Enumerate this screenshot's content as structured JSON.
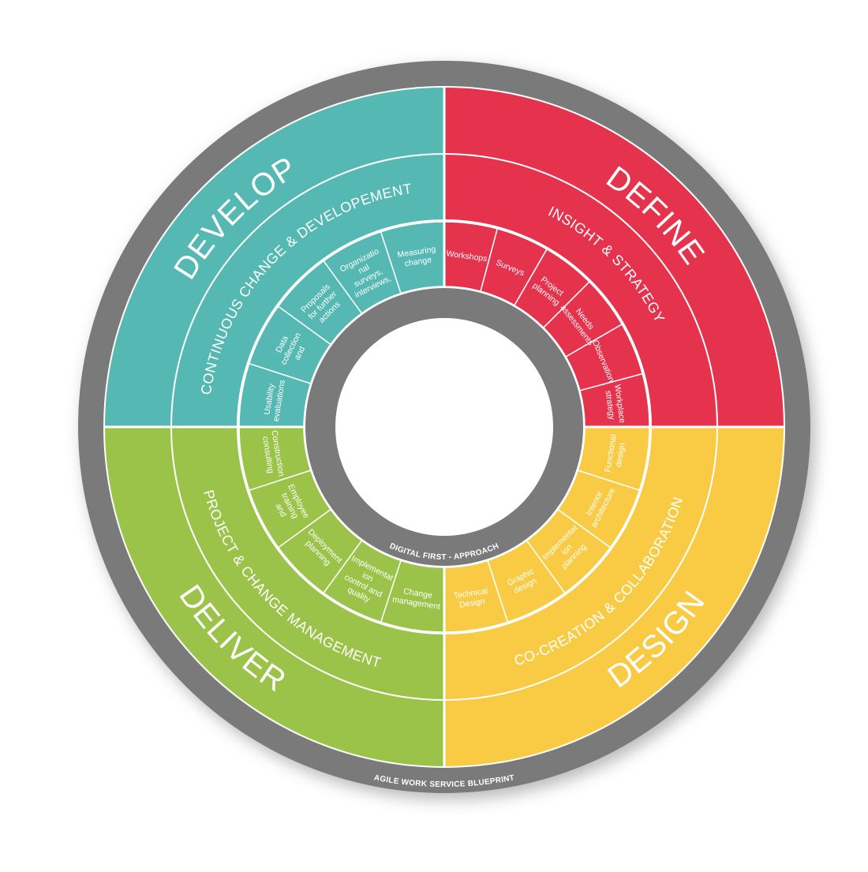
{
  "blueprint_label": "AGILE WORK SERVICE BLUEPRINT",
  "center_label": "DIGITAL FIRST - APPROACH",
  "colors": {
    "gray": "#7a7a7a",
    "define": "#e5334d",
    "design": "#f9cb45",
    "deliver": "#9bc34a",
    "develop": "#56b8b3",
    "divider": "#ffffff"
  },
  "quadrants": [
    {
      "id": "develop",
      "phase": "DEVELOP",
      "ring": "CONTINUOUS CHANGE & DEVELOPEMENT",
      "color": "#56b8b3",
      "segments": [
        "Usability evaluations",
        "Data collection and",
        "Proposals for further actions",
        "Organizational surveys, interviews,",
        "Measuring change"
      ]
    },
    {
      "id": "define",
      "phase": "DEFINE",
      "ring": "INSIGHT & STRATEGY",
      "color": "#e5334d",
      "segments": [
        "Workshops",
        "Surveys",
        "Project planning",
        "Needs assessments",
        "Observation",
        "Workplace strategy"
      ]
    },
    {
      "id": "design",
      "phase": "DESIGN",
      "ring": "CO-CREATION & COLLABORATION",
      "color": "#f9cb45",
      "segments": [
        "Functional design",
        "Interior architecture",
        "Implementation planning",
        "Graphic design",
        "Technical Design"
      ]
    },
    {
      "id": "deliver",
      "phase": "DELIVER",
      "ring": "PROJECT & CHANGE MANAGEMENT",
      "color": "#9bc34a",
      "segments": [
        "Change management",
        "Implementation control and quality",
        "Deployment planning",
        "Employee training and",
        "Construction consulting"
      ]
    }
  ]
}
